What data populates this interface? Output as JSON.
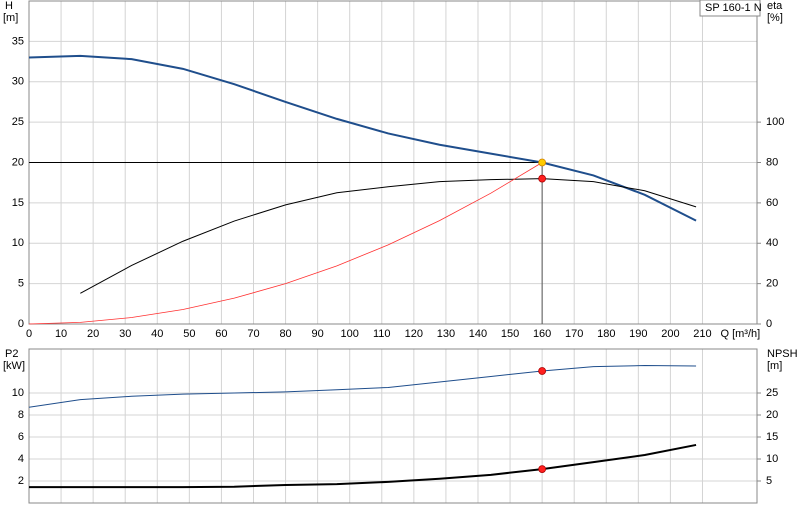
{
  "chart_data": [
    {
      "type": "line",
      "title": "SP 160-1 N",
      "y_label": "H",
      "y_unit": "[m]",
      "y2_label": "eta",
      "y2_unit": "[%]",
      "x_label": "Q [m³/h]",
      "x": [
        0,
        16,
        32,
        48,
        64,
        80,
        96,
        112,
        128,
        144,
        160,
        176,
        192,
        208
      ],
      "xlim": [
        0,
        227
      ],
      "xticks": [
        0,
        10,
        20,
        30,
        40,
        50,
        60,
        70,
        80,
        90,
        100,
        110,
        120,
        130,
        140,
        150,
        160,
        170,
        180,
        190,
        200,
        210
      ],
      "ylim": [
        0,
        40
      ],
      "yticks": [
        0,
        5,
        10,
        15,
        20,
        25,
        30,
        35
      ],
      "y2lim": [
        0,
        160
      ],
      "y2ticks": [
        0,
        20,
        40,
        60,
        80,
        100
      ],
      "grid": true,
      "series": [
        {
          "color": "#1f4e8c",
          "line_width": 2,
          "values": [
            33,
            33.2,
            32.8,
            31.6,
            29.7,
            27.5,
            25.4,
            23.6,
            22.2,
            21.1,
            20,
            18.4,
            16,
            12.8
          ]
        },
        {
          "color": "#000000",
          "line_width": 1,
          "axis": "y2",
          "values": [
            null,
            15.2,
            29,
            41,
            51,
            59,
            65,
            68,
            70.5,
            71.5,
            72,
            70.5,
            66,
            58
          ]
        },
        {
          "color": "#ff3030",
          "line_width": 0.8,
          "values": [
            0,
            0.2,
            0.8,
            1.8,
            3.2,
            5,
            7.2,
            9.8,
            12.8,
            16.2,
            20,
            null,
            null,
            null
          ]
        }
      ],
      "duty_point": {
        "x": 160,
        "y": 20,
        "y2": 72
      }
    },
    {
      "type": "line",
      "y_label": "P2",
      "y_unit": "[kW]",
      "y2_label": "NPSH",
      "y2_unit": "[m]",
      "x": [
        0,
        16,
        32,
        48,
        64,
        80,
        96,
        112,
        128,
        144,
        160,
        176,
        192,
        208
      ],
      "xlim": [
        0,
        227
      ],
      "xticks": [
        0,
        10,
        20,
        30,
        40,
        50,
        60,
        70,
        80,
        90,
        100,
        110,
        120,
        130,
        140,
        150,
        160,
        170,
        180,
        190,
        200,
        210
      ],
      "ylim": [
        0,
        14
      ],
      "yticks": [
        2,
        4,
        6,
        8,
        10
      ],
      "y2lim": [
        0,
        35
      ],
      "y2ticks": [
        5,
        10,
        15,
        20,
        25
      ],
      "grid": true,
      "series": [
        {
          "color": "#1f4e8c",
          "line_width": 1,
          "values": [
            8.7,
            9.4,
            9.7,
            9.9,
            10,
            10.1,
            10.3,
            10.5,
            11,
            11.5,
            12,
            12.4,
            12.5,
            12.45
          ]
        },
        {
          "color": "#000000",
          "line_width": 2,
          "axis": "y2",
          "values": [
            3.6,
            3.6,
            3.6,
            3.6,
            3.7,
            4.1,
            4.3,
            4.8,
            5.5,
            6.4,
            7.7,
            9.3,
            10.9,
            13.2
          ]
        }
      ],
      "duty_point": {
        "x": 160,
        "y": 12,
        "y2": 7.7
      }
    }
  ]
}
